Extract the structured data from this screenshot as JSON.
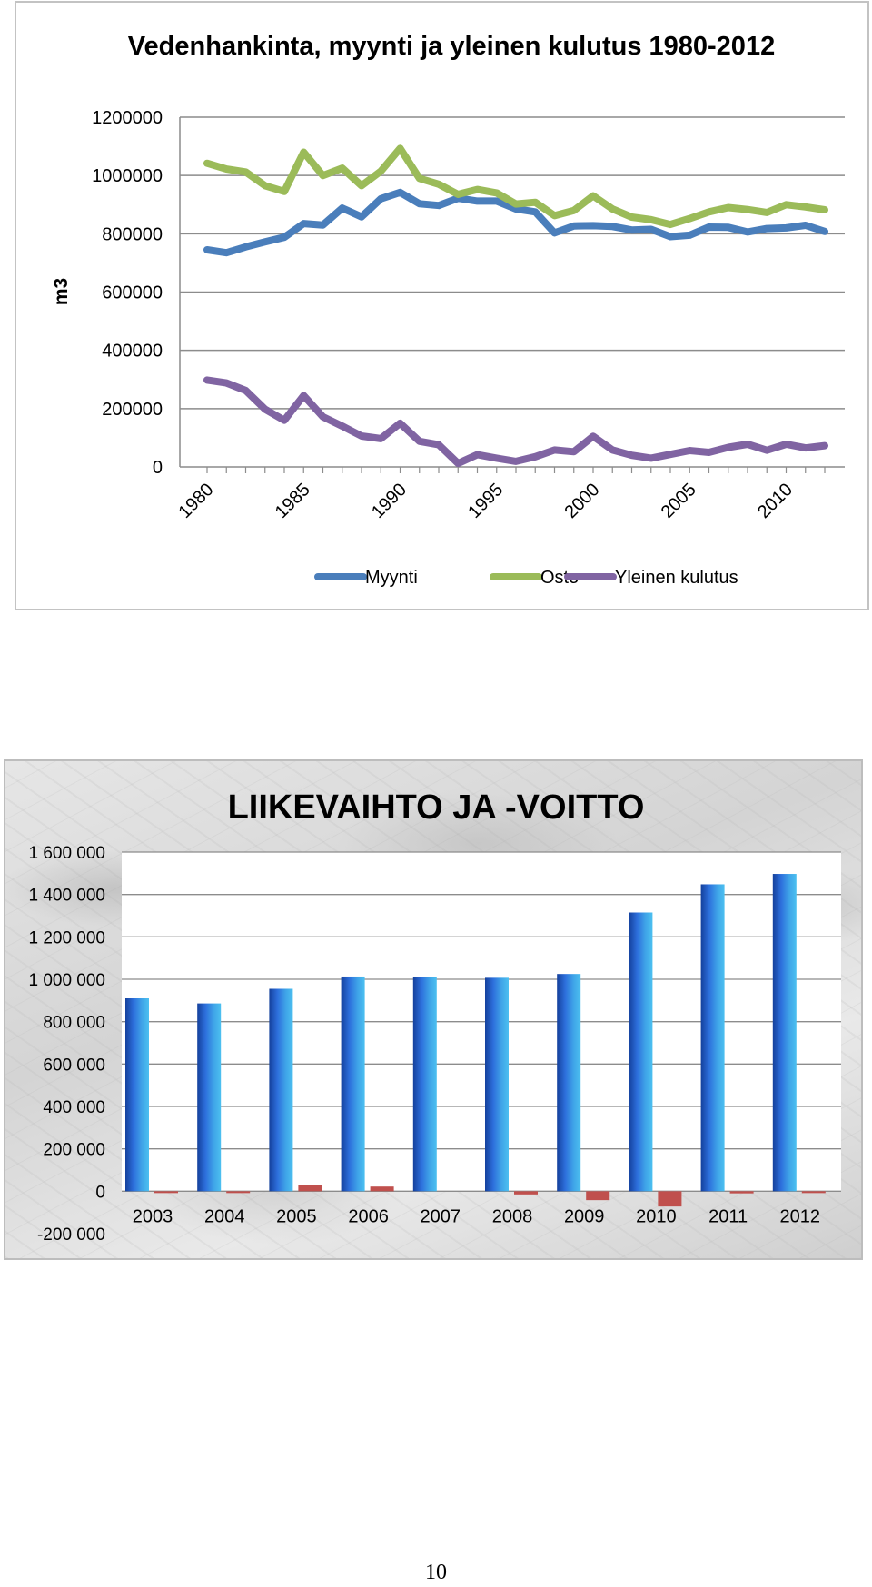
{
  "page_number": "10",
  "chart_data": [
    {
      "type": "line",
      "title": "Vedenhankinta, myynti ja yleinen kulutus 1980-2012",
      "xlabel": "",
      "ylabel": "m3",
      "ylim": [
        0,
        1200000
      ],
      "yticks": [
        "0",
        "200000",
        "400000",
        "600000",
        "800000",
        "1000000",
        "1200000"
      ],
      "xticks": [
        "1980",
        "1985",
        "1990",
        "1995",
        "2000",
        "2005",
        "2010"
      ],
      "grid": true,
      "legend_position": "bottom",
      "x": [
        1980,
        1981,
        1982,
        1983,
        1984,
        1985,
        1986,
        1987,
        1988,
        1989,
        1990,
        1991,
        1992,
        1993,
        1994,
        1995,
        1996,
        1997,
        1998,
        1999,
        2000,
        2001,
        2002,
        2003,
        2004,
        2005,
        2006,
        2007,
        2008,
        2009,
        2010,
        2011,
        2012
      ],
      "series": [
        {
          "name": "Myynti",
          "color": "#4a7ebb",
          "values": [
            745000,
            735000,
            755000,
            772000,
            788000,
            835000,
            830000,
            888000,
            858000,
            920000,
            942000,
            903000,
            897000,
            922000,
            912000,
            912000,
            885000,
            875000,
            803000,
            827000,
            828000,
            825000,
            813000,
            815000,
            790000,
            795000,
            823000,
            822000,
            806000,
            818000,
            820000,
            829000,
            808000
          ]
        },
        {
          "name": "Osto",
          "color": "#9bbb59",
          "values": [
            1042000,
            1022000,
            1012000,
            965000,
            945000,
            1080000,
            1000000,
            1025000,
            965000,
            1015000,
            1093000,
            990000,
            970000,
            935000,
            952000,
            940000,
            902000,
            908000,
            862000,
            880000,
            930000,
            885000,
            857000,
            848000,
            832000,
            852000,
            875000,
            890000,
            883000,
            873000,
            900000,
            892000,
            882000
          ]
        },
        {
          "name": "Yleinen kulutus",
          "color": "#8064a2",
          "values": [
            298000,
            288000,
            262000,
            198000,
            160000,
            245000,
            172000,
            140000,
            106000,
            97000,
            150000,
            88000,
            76000,
            12000,
            42000,
            30000,
            19000,
            35000,
            58000,
            52000,
            105000,
            58000,
            40000,
            30000,
            43000,
            56000,
            50000,
            67000,
            78000,
            57000,
            78000,
            65000,
            73000
          ]
        }
      ]
    },
    {
      "type": "bar",
      "title": "LIIKEVAIHTO JA -VOITTO",
      "xlabel": "",
      "ylabel": "",
      "ylim": [
        -200000,
        1600000
      ],
      "yticks": [
        "-200 000",
        "0",
        "200 000",
        "400 000",
        "600 000",
        "800 000",
        "1 000 000",
        "1 200 000",
        "1 400 000",
        "1 600 000"
      ],
      "categories": [
        "2003",
        "2004",
        "2005",
        "2006",
        "2007",
        "2008",
        "2009",
        "2010",
        "2011",
        "2012"
      ],
      "grid": true,
      "series": [
        {
          "color": "#1f6fd0",
          "values": [
            910000,
            886000,
            955000,
            1013000,
            1010000,
            1007000,
            1025000,
            1315000,
            1448000,
            1497000
          ]
        },
        {
          "color": "#c0504d",
          "values": [
            -8000,
            -3000,
            30000,
            22000,
            0,
            -15000,
            -42000,
            -72000,
            -10000,
            -2000
          ]
        }
      ]
    }
  ]
}
